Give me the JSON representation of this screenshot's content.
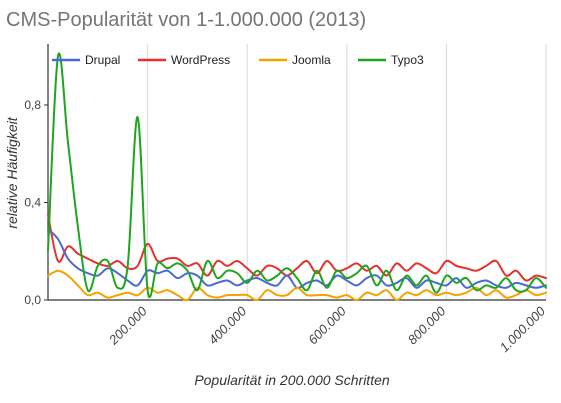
{
  "chart_data": {
    "type": "line",
    "title": "CMS-Popularität von 1-1.000.000 (2013)",
    "xlabel": "Popularität in 200.000 Schritten",
    "ylabel": "relative Häufigkeit",
    "xlim": [
      0,
      1000000
    ],
    "ylim": [
      0,
      1.05
    ],
    "x_ticks": [
      200000,
      400000,
      600000,
      800000,
      1000000
    ],
    "x_tick_labels": [
      "200.000",
      "400.000",
      "600.000",
      "800.000",
      "1.000.000"
    ],
    "y_ticks": [
      0,
      0.4,
      0.8
    ],
    "y_tick_labels": [
      "0,0",
      "0,4",
      "0,8"
    ],
    "grid": "vertical",
    "legend_position": "top",
    "x": [
      0,
      20000,
      40000,
      60000,
      80000,
      100000,
      120000,
      140000,
      160000,
      180000,
      200000,
      220000,
      240000,
      260000,
      280000,
      300000,
      320000,
      340000,
      360000,
      380000,
      400000,
      420000,
      440000,
      460000,
      480000,
      500000,
      520000,
      540000,
      560000,
      580000,
      600000,
      620000,
      640000,
      660000,
      680000,
      700000,
      720000,
      740000,
      760000,
      780000,
      800000,
      820000,
      840000,
      860000,
      880000,
      900000,
      920000,
      940000,
      960000,
      980000,
      1000000
    ],
    "series": [
      {
        "name": "Drupal",
        "color": "#4a68d6",
        "values": [
          0.29,
          0.25,
          0.17,
          0.13,
          0.11,
          0.1,
          0.13,
          0.11,
          0.08,
          0.06,
          0.12,
          0.11,
          0.12,
          0.09,
          0.11,
          0.1,
          0.06,
          0.07,
          0.08,
          0.06,
          0.08,
          0.09,
          0.07,
          0.06,
          0.1,
          0.05,
          0.07,
          0.08,
          0.06,
          0.1,
          0.08,
          0.06,
          0.09,
          0.1,
          0.06,
          0.07,
          0.09,
          0.05,
          0.08,
          0.07,
          0.06,
          0.09,
          0.05,
          0.07,
          0.08,
          0.06,
          0.05,
          0.07,
          0.06,
          0.05,
          0.06
        ]
      },
      {
        "name": "WordPress",
        "color": "#e3312e",
        "values": [
          0.35,
          0.16,
          0.22,
          0.19,
          0.17,
          0.15,
          0.14,
          0.16,
          0.13,
          0.14,
          0.23,
          0.16,
          0.17,
          0.17,
          0.14,
          0.15,
          0.1,
          0.16,
          0.14,
          0.16,
          0.13,
          0.1,
          0.14,
          0.13,
          0.1,
          0.13,
          0.16,
          0.11,
          0.16,
          0.12,
          0.13,
          0.15,
          0.12,
          0.14,
          0.1,
          0.15,
          0.12,
          0.15,
          0.13,
          0.11,
          0.16,
          0.14,
          0.13,
          0.12,
          0.14,
          0.16,
          0.1,
          0.12,
          0.08,
          0.1,
          0.09
        ]
      },
      {
        "name": "Joomla",
        "color": "#f5a200",
        "values": [
          0.1,
          0.12,
          0.1,
          0.06,
          0.02,
          0.03,
          0.01,
          0.02,
          0.03,
          0.02,
          0.05,
          0.03,
          0.04,
          0.02,
          0.0,
          0.05,
          0.02,
          0.01,
          0.02,
          0.02,
          0.02,
          0.0,
          0.04,
          0.02,
          0.02,
          0.05,
          0.02,
          0.02,
          0.02,
          0.01,
          0.02,
          0.0,
          0.03,
          0.02,
          0.04,
          0.0,
          0.03,
          0.02,
          0.04,
          0.02,
          0.03,
          0.02,
          0.03,
          0.05,
          0.02,
          0.04,
          0.01,
          0.02,
          0.04,
          0.02,
          0.03
        ]
      },
      {
        "name": "Typo3",
        "color": "#1fa51f",
        "values": [
          0.2,
          1.0,
          0.65,
          0.3,
          0.04,
          0.14,
          0.16,
          0.05,
          0.14,
          0.75,
          0.04,
          0.15,
          0.13,
          0.15,
          0.12,
          0.04,
          0.16,
          0.09,
          0.12,
          0.11,
          0.07,
          0.12,
          0.08,
          0.1,
          0.13,
          0.09,
          0.04,
          0.12,
          0.05,
          0.12,
          0.09,
          0.11,
          0.14,
          0.06,
          0.12,
          0.04,
          0.1,
          0.06,
          0.1,
          0.03,
          0.1,
          0.07,
          0.09,
          0.04,
          0.06,
          0.05,
          0.09,
          0.04,
          0.04,
          0.09,
          0.05
        ]
      }
    ]
  }
}
